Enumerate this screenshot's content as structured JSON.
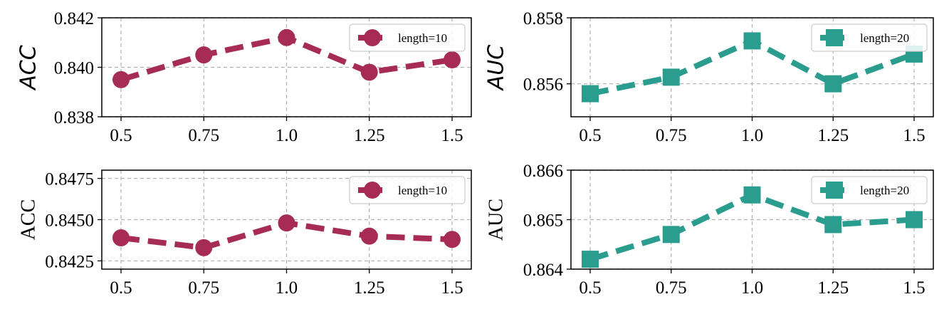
{
  "chart_data": [
    {
      "type": "line",
      "x": [
        "0.5",
        "0.75",
        "1.0",
        "1.25",
        "1.5"
      ],
      "series": [
        {
          "name": "length=10",
          "values": [
            0.8395,
            0.8405,
            0.8412,
            0.8398,
            0.8403
          ],
          "color": "#A62C56",
          "marker": "circle"
        }
      ],
      "xlabel": "",
      "ylabel": "ACC",
      "ylabel_style": "italic",
      "ylim": [
        0.838,
        0.842
      ],
      "yticks": [
        "0.838",
        "0.840",
        "0.842"
      ],
      "grid": true,
      "legend": "top-right"
    },
    {
      "type": "line",
      "x": [
        "0.5",
        "0.75",
        "1.0",
        "1.25",
        "1.5"
      ],
      "series": [
        {
          "name": "length=20",
          "values": [
            0.8557,
            0.8562,
            0.8573,
            0.856,
            0.8569
          ],
          "color": "#2A9D8F",
          "marker": "square"
        }
      ],
      "xlabel": "",
      "ylabel": "AUC",
      "ylabel_style": "italic",
      "ylim": [
        0.855,
        0.858
      ],
      "yticks": [
        "0.856",
        "0.858"
      ],
      "grid": true,
      "legend": "top-right"
    },
    {
      "type": "line",
      "x": [
        "0.5",
        "0.75",
        "1.0",
        "1.25",
        "1.5"
      ],
      "series": [
        {
          "name": "length=10",
          "values": [
            0.8439,
            0.8433,
            0.8448,
            0.844,
            0.8438
          ],
          "color": "#A62C56",
          "marker": "circle"
        }
      ],
      "xlabel": "",
      "ylabel": "ACC",
      "ylabel_style": "roman",
      "ylim": [
        0.842,
        0.848
      ],
      "yticks": [
        "0.8425",
        "0.8450",
        "0.8475"
      ],
      "grid": true,
      "legend": "top-right"
    },
    {
      "type": "line",
      "x": [
        "0.5",
        "0.75",
        "1.0",
        "1.25",
        "1.5"
      ],
      "series": [
        {
          "name": "length=20",
          "values": [
            0.8642,
            0.8647,
            0.8655,
            0.8649,
            0.865
          ],
          "color": "#2A9D8F",
          "marker": "square"
        }
      ],
      "xlabel": "",
      "ylabel": "AUC",
      "ylabel_style": "roman",
      "ylim": [
        0.864,
        0.866
      ],
      "yticks": [
        "0.864",
        "0.865",
        "0.866"
      ],
      "grid": true,
      "legend": "top-right"
    }
  ]
}
